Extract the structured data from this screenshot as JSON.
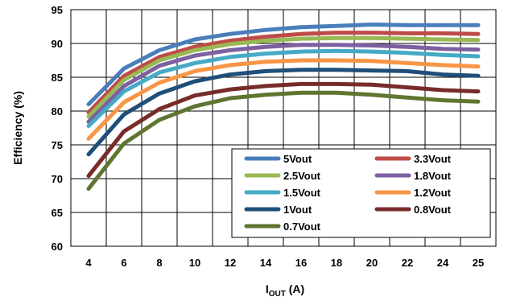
{
  "chart_data": {
    "type": "line",
    "x": [
      4,
      6,
      8,
      10,
      12,
      14,
      16,
      18,
      20,
      22,
      24,
      25
    ],
    "x_tick_labels": [
      "4",
      "6",
      "8",
      "10",
      "12",
      "14",
      "16",
      "18",
      "20",
      "22",
      "24",
      "25"
    ],
    "ylim": [
      60,
      95
    ],
    "y_ticks": [
      60,
      65,
      70,
      75,
      80,
      85,
      90,
      95
    ],
    "grid": true,
    "ylabel": "Efficiency (%)",
    "xlabel_main": "I",
    "xlabel_sub": "OUT",
    "xlabel_unit": " (A)",
    "legend_placement": "bottom-right",
    "series": [
      {
        "name": "5Vout",
        "color": "#4a7ebb",
        "values": [
          81.0,
          86.3,
          89.0,
          90.6,
          91.4,
          92.0,
          92.4,
          92.6,
          92.8,
          92.7,
          92.7,
          92.7
        ]
      },
      {
        "name": "3.3Vout",
        "color": "#be4b48",
        "values": [
          79.8,
          85.2,
          88.0,
          89.5,
          90.4,
          91.0,
          91.4,
          91.6,
          91.6,
          91.5,
          91.5,
          91.4
        ]
      },
      {
        "name": "2.5Vout",
        "color": "#98b954",
        "values": [
          79.2,
          84.6,
          87.5,
          89.0,
          89.9,
          90.4,
          90.7,
          90.8,
          90.8,
          90.7,
          90.6,
          90.5
        ]
      },
      {
        "name": "1.8Vout",
        "color": "#7d60a0",
        "values": [
          78.4,
          83.7,
          86.7,
          88.2,
          89.0,
          89.5,
          89.8,
          89.8,
          89.7,
          89.5,
          89.2,
          89.1
        ]
      },
      {
        "name": "1.5Vout",
        "color": "#46aac5",
        "values": [
          77.8,
          82.9,
          85.7,
          87.1,
          88.0,
          88.5,
          88.8,
          88.9,
          88.8,
          88.6,
          88.3,
          88.1
        ]
      },
      {
        "name": "1.2Vout",
        "color": "#f79646",
        "values": [
          75.9,
          81.3,
          84.2,
          85.9,
          86.8,
          87.3,
          87.5,
          87.5,
          87.4,
          87.1,
          86.8,
          86.6
        ]
      },
      {
        "name": "1Vout",
        "color": "#1f4e79",
        "values": [
          73.6,
          79.5,
          82.6,
          84.4,
          85.4,
          85.9,
          86.1,
          86.1,
          86.0,
          85.9,
          85.4,
          85.2
        ]
      },
      {
        "name": "0.8Vout",
        "color": "#772c2a",
        "values": [
          70.4,
          77.0,
          80.3,
          82.3,
          83.2,
          83.7,
          84.0,
          84.0,
          83.9,
          83.5,
          83.1,
          82.9
        ]
      },
      {
        "name": "0.7Vout",
        "color": "#5f7530",
        "values": [
          68.5,
          75.2,
          78.7,
          80.7,
          81.9,
          82.4,
          82.7,
          82.7,
          82.4,
          82.0,
          81.6,
          81.4
        ]
      }
    ]
  }
}
